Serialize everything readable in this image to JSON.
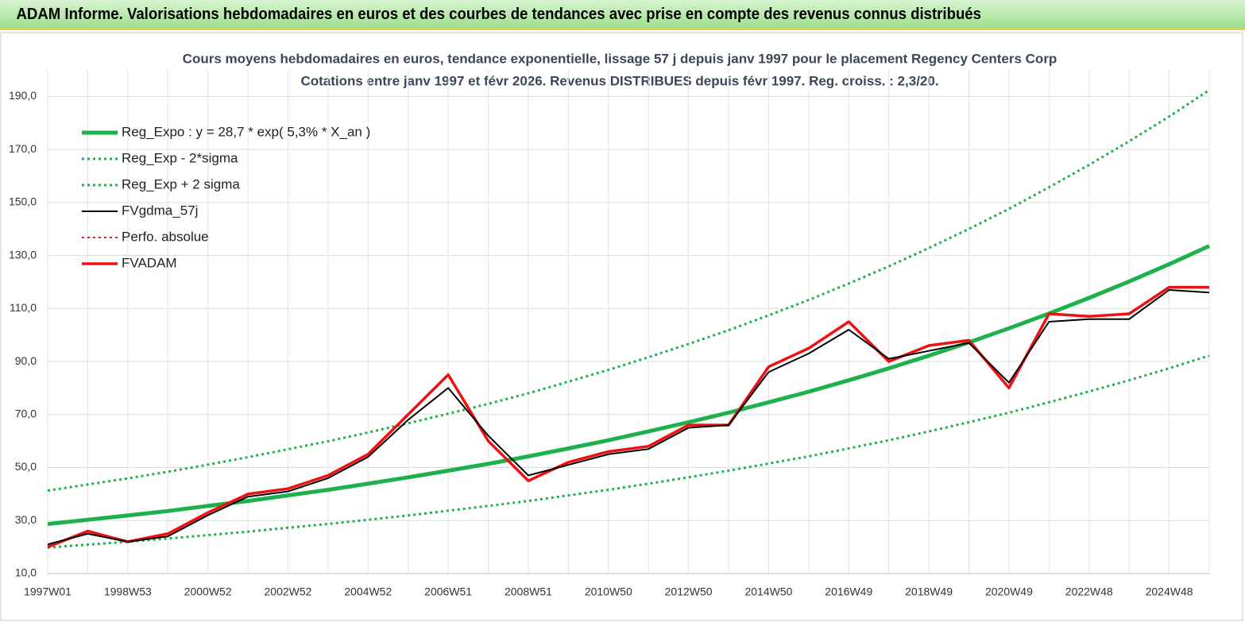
{
  "header": {
    "title": "ADAM Informe. Valorisations hebdomadaires en euros et des courbes de tendances avec prise en compte des revenus connus distribués"
  },
  "chart_data": {
    "type": "line",
    "title": "Cours moyens hebdomadaires en euros, tendance exponentielle, lissage 57 j depuis janv 1997 pour le placement Regency Centers Corp",
    "subtitle": "Cotations entre janv 1997 et févr 2026. Revenus DISTRIBUES depuis févr 1997. Reg. croiss. : 2,3/20.",
    "categories": [
      "1997W01",
      null,
      "1998W53",
      null,
      "2000W52",
      null,
      "2002W52",
      null,
      "2004W52",
      null,
      "2006W51",
      null,
      "2008W51",
      null,
      "2010W50",
      null,
      "2012W50",
      null,
      "2014W50",
      null,
      "2016W49",
      null,
      "2018W49",
      null,
      "2020W49",
      null,
      "2022W48",
      null,
      "2024W48",
      null
    ],
    "ylim": [
      10,
      200
    ],
    "yticks": [
      {
        "value": 10,
        "label": "10,0"
      },
      {
        "value": 30,
        "label": "30,0"
      },
      {
        "value": 50,
        "label": "50,0"
      },
      {
        "value": 70,
        "label": "70,0"
      },
      {
        "value": 90,
        "label": "90,0"
      },
      {
        "value": 110,
        "label": "110,0"
      },
      {
        "value": 130,
        "label": "130,0"
      },
      {
        "value": 150,
        "label": "150,0"
      },
      {
        "value": 170,
        "label": "170,0"
      },
      {
        "value": 190,
        "label": "190,0"
      }
    ],
    "grid": true,
    "legend": "top-left",
    "series": [
      {
        "name": "Reg_Expo : y = 28,7 * exp( 5,3% *  X_an )",
        "color": "#1db14b",
        "style": "solid",
        "width": 5,
        "values": [
          28.7,
          30.3,
          31.9,
          33.6,
          35.5,
          37.4,
          39.5,
          41.6,
          43.9,
          46.3,
          48.8,
          51.4,
          54.2,
          57.2,
          60.3,
          63.6,
          67.1,
          70.7,
          74.6,
          78.6,
          82.9,
          87.4,
          92.2,
          97.2,
          102.5,
          108.1,
          114.0,
          120.2,
          126.7,
          133.6
        ]
      },
      {
        "name": "Reg_Exp - 2*sigma",
        "color": "#1db14b",
        "style": "dotted",
        "width": 3,
        "values": [
          19.8,
          20.9,
          22.0,
          23.2,
          24.5,
          25.8,
          27.3,
          28.7,
          30.3,
          31.9,
          33.7,
          35.5,
          37.4,
          39.5,
          41.6,
          43.9,
          46.3,
          48.8,
          51.5,
          54.2,
          57.2,
          60.3,
          63.6,
          67.1,
          70.7,
          74.6,
          78.7,
          82.9,
          87.4,
          92.2
        ]
      },
      {
        "name": "Reg_Exp + 2 sigma",
        "color": "#1db14b",
        "style": "dotted",
        "width": 3,
        "values": [
          41.3,
          43.6,
          45.9,
          48.4,
          51.1,
          53.9,
          56.9,
          59.9,
          63.2,
          66.7,
          70.3,
          74.0,
          78.0,
          82.4,
          86.8,
          91.6,
          96.6,
          101.8,
          107.4,
          113.2,
          119.4,
          125.9,
          132.8,
          140.0,
          147.6,
          155.7,
          164.2,
          173.1,
          182.4,
          192.4
        ]
      },
      {
        "name": "FVgdma_57j",
        "color": "#000000",
        "style": "solid",
        "width": 2,
        "values": [
          21,
          25,
          22,
          24,
          32,
          39,
          41,
          46,
          54,
          68,
          80,
          62,
          47,
          51,
          55,
          57,
          65,
          66,
          86,
          93,
          102,
          91,
          94,
          97,
          82,
          105,
          106,
          106,
          117,
          116
        ]
      },
      {
        "name": "Perfo. absolue",
        "color": "#e41a1c",
        "style": "dotted",
        "width": 2,
        "values": [
          20,
          26,
          22,
          25,
          33,
          40,
          42,
          47,
          55,
          70,
          85,
          60,
          45,
          52,
          56,
          58,
          66,
          66,
          88,
          95,
          105,
          90,
          96,
          98,
          80,
          108,
          107,
          108,
          118,
          118
        ]
      },
      {
        "name": "FVADAM",
        "color": "#ee1111",
        "style": "solid",
        "width": 3.5,
        "values": [
          20,
          26,
          22,
          25,
          33,
          40,
          42,
          47,
          55,
          70,
          85,
          60,
          45,
          52,
          56,
          58,
          66,
          66,
          88,
          95,
          105,
          90,
          96,
          98,
          80,
          108,
          107,
          108,
          118,
          118
        ]
      }
    ]
  }
}
